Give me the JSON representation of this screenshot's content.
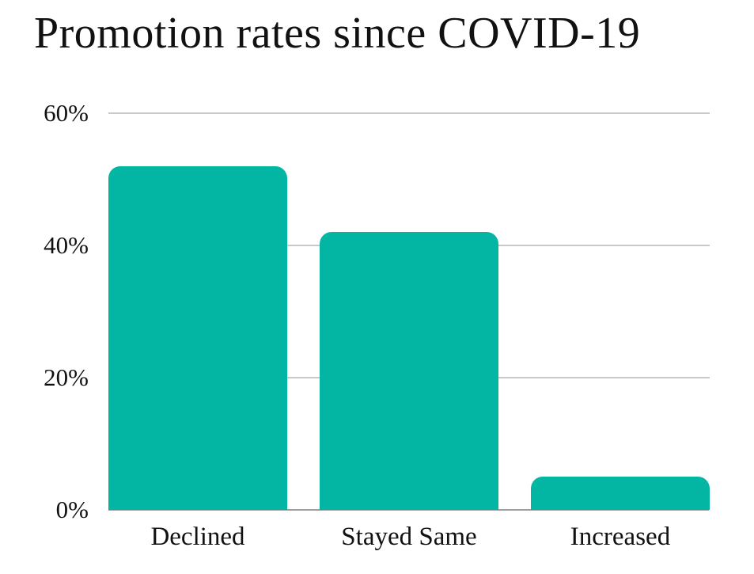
{
  "chart_data": {
    "type": "bar",
    "title": "Promotion rates since COVID-19",
    "categories": [
      "Declined",
      "Stayed Same",
      "Increased"
    ],
    "values": [
      52,
      42,
      5
    ],
    "unit": "%",
    "xlabel": "",
    "ylabel": "",
    "ylim": [
      0,
      60
    ],
    "yticks": [
      60,
      40,
      20,
      0
    ],
    "ytick_labels": [
      "60%",
      "40%",
      "20%",
      "0%"
    ],
    "grid": "horizontal-gridlines-at-20-40-60",
    "legend": "none",
    "bar_color": "#02b6a3",
    "gridline_color": "#c9c9c9",
    "axis_line_color": "#9e9e9e",
    "text_color": "#111111",
    "background_color": "#ffffff"
  }
}
